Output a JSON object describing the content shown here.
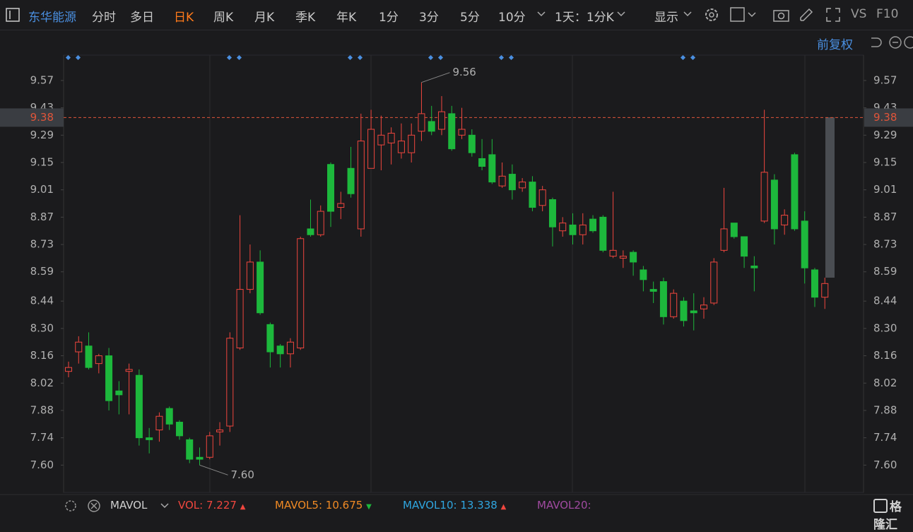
{
  "toolbar": {
    "stock": "东华能源",
    "periods": [
      "分时",
      "多日",
      "日K",
      "周K",
      "月K",
      "季K",
      "年K",
      "1分",
      "3分",
      "5分",
      "10分"
    ],
    "range": "1天：1分K",
    "display": "显示",
    "compare": "VS",
    "f10": "F10"
  },
  "adjust": "前复权",
  "watermark": "格隆汇",
  "chart_data": {
    "type": "candlestick",
    "up_color": "#f0463e",
    "down_color": "#1db83c",
    "open": [
      8.08,
      8.18,
      8.21,
      8.12,
      8.16,
      7.98,
      8.08,
      8.06,
      7.74,
      7.78,
      7.89,
      7.82,
      7.73,
      7.64,
      7.64,
      7.77,
      7.8,
      8.2,
      8.5,
      8.64,
      8.32,
      8.21,
      8.17,
      8.2,
      8.81,
      8.78,
      9.14,
      8.92,
      9.12,
      8.81,
      9.12,
      9.24,
      9.25,
      9.2,
      9.2,
      9.31,
      9.36,
      9.32,
      9.4,
      9.29,
      9.29,
      9.17,
      9.19,
      9.03,
      9.09,
      9.02,
      9.05,
      8.93,
      8.96,
      8.8,
      8.83,
      8.78,
      8.86,
      8.87,
      8.67,
      8.66,
      8.69,
      8.6,
      8.5,
      8.54,
      8.36,
      8.44,
      8.39,
      8.4,
      8.43,
      8.7,
      8.84,
      8.77,
      8.62,
      8.85,
      9.06,
      8.83,
      9.19,
      8.85,
      8.6,
      8.46
    ],
    "high": [
      8.13,
      8.26,
      8.28,
      8.17,
      8.2,
      8.03,
      8.12,
      8.09,
      7.79,
      7.87,
      7.9,
      7.83,
      7.74,
      7.69,
      7.77,
      7.82,
      8.28,
      8.88,
      8.73,
      8.7,
      8.33,
      8.22,
      8.25,
      8.77,
      8.96,
      8.93,
      9.15,
      9.0,
      9.23,
      9.4,
      9.42,
      9.39,
      9.33,
      9.35,
      9.35,
      9.56,
      9.44,
      9.49,
      9.44,
      9.43,
      9.32,
      9.27,
      9.27,
      9.15,
      9.14,
      9.07,
      9.08,
      9.03,
      8.97,
      8.87,
      8.89,
      8.89,
      8.88,
      8.88,
      9.0,
      8.7,
      8.7,
      8.62,
      8.54,
      8.56,
      8.5,
      8.46,
      8.48,
      8.46,
      8.66,
      9.02,
      8.84,
      8.77,
      8.67,
      9.42,
      9.09,
      8.91,
      9.2,
      8.9,
      8.61,
      8.56
    ],
    "low": [
      8.05,
      8.12,
      8.09,
      8.07,
      7.88,
      7.86,
      7.86,
      7.7,
      7.66,
      7.72,
      7.78,
      7.73,
      7.61,
      7.6,
      7.63,
      7.7,
      7.77,
      8.19,
      8.48,
      8.37,
      8.1,
      8.1,
      8.1,
      8.19,
      8.77,
      8.77,
      8.82,
      8.86,
      8.97,
      8.77,
      9.12,
      9.11,
      9.14,
      9.17,
      9.15,
      9.26,
      9.29,
      9.29,
      9.21,
      9.27,
      9.18,
      9.11,
      9.04,
      9.02,
      8.96,
      9.0,
      8.9,
      8.9,
      8.72,
      8.77,
      8.73,
      8.73,
      8.79,
      8.69,
      8.66,
      8.61,
      8.57,
      8.49,
      8.43,
      8.32,
      8.35,
      8.31,
      8.29,
      8.35,
      8.42,
      8.69,
      8.76,
      8.61,
      8.49,
      8.84,
      8.73,
      8.78,
      8.8,
      8.53,
      8.41,
      8.4
    ],
    "close": [
      8.1,
      8.23,
      8.1,
      8.16,
      7.93,
      7.96,
      8.09,
      7.74,
      7.73,
      7.85,
      7.81,
      7.75,
      7.63,
      7.63,
      7.75,
      7.78,
      8.25,
      8.5,
      8.64,
      8.38,
      8.18,
      8.17,
      8.23,
      8.76,
      8.78,
      8.9,
      8.9,
      8.94,
      8.99,
      9.26,
      9.32,
      9.29,
      9.3,
      9.26,
      9.29,
      9.4,
      9.31,
      9.41,
      9.22,
      9.32,
      9.2,
      9.13,
      9.05,
      9.08,
      9.01,
      9.05,
      8.92,
      9.01,
      8.82,
      8.84,
      8.78,
      8.83,
      8.8,
      8.7,
      8.7,
      8.67,
      8.64,
      8.55,
      8.49,
      8.36,
      8.48,
      8.34,
      8.38,
      8.42,
      8.64,
      8.81,
      8.77,
      8.67,
      8.61,
      9.1,
      8.81,
      8.88,
      8.81,
      8.61,
      8.46,
      8.53
    ],
    "ylim": [
      7.46,
      9.7
    ],
    "yticks": [
      9.57,
      9.43,
      9.29,
      9.15,
      9.01,
      8.87,
      8.73,
      8.59,
      8.44,
      {
        "value": 8.3,
        "label": "8.30"
      },
      8.16,
      8.02,
      7.88,
      7.74,
      {
        "value": 7.6,
        "label": "7.60"
      }
    ],
    "last_price": 9.38,
    "last_price_color": "#e0553a",
    "high_label": 9.56,
    "low_label": {
      "value": 7.6,
      "label": "7.60"
    }
  },
  "volume_legend": {
    "indicator": "MAVOL",
    "items": [
      {
        "name": "VOL:",
        "value": "7.227",
        "color": "#f0463e"
      },
      {
        "name": "MAVOL5:",
        "value": "10.675",
        "color": "#f08a24"
      },
      {
        "name": "MAVOL10:",
        "value": "13.338",
        "color": "#2fa6e0"
      },
      {
        "name": "MAVOL20:",
        "color": "#a04aa0"
      }
    ]
  }
}
